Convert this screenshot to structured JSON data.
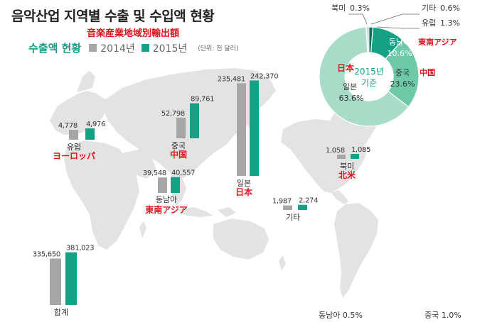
{
  "title": "음악산업 지역별 수출 및 수입액 현황",
  "subtitle_jp": "音楽産業地域別輸出額",
  "legend": {
    "title": "수출액 현황",
    "items": [
      {
        "label": "2014년",
        "color": "#a6a6a6"
      },
      {
        "label": "2015년",
        "color": "#16a085"
      }
    ],
    "unit": "(단위: 천 달러)"
  },
  "bottom_notes": {
    "southeast_asia": "동남아 0.5%",
    "china": "중국 1.0%"
  },
  "chart_data": [
    {
      "type": "bar",
      "series": [
        {
          "name": "2014년"
        },
        {
          "name": "2015년"
        }
      ],
      "regions": [
        {
          "key": "europe",
          "label": "유럽",
          "label_jp": "ヨーロッパ",
          "values": [
            4778,
            4976
          ],
          "value_labels": [
            "4,778",
            "4,976"
          ]
        },
        {
          "key": "china",
          "label": "중국",
          "label_jp": "中国",
          "values": [
            52798,
            89761
          ],
          "value_labels": [
            "52,798",
            "89,761"
          ]
        },
        {
          "key": "southeast_asia",
          "label": "동남아",
          "label_jp": "東南アジア",
          "values": [
            39548,
            40557
          ],
          "value_labels": [
            "39,548",
            "40,557"
          ]
        },
        {
          "key": "japan",
          "label": "일본",
          "label_jp": "日本",
          "values": [
            235481,
            242370
          ],
          "value_labels": [
            "235,481",
            "242,370"
          ]
        },
        {
          "key": "others",
          "label": "기타",
          "label_jp": "",
          "values": [
            1987,
            2274
          ],
          "value_labels": [
            "1,987",
            "2,274"
          ]
        },
        {
          "key": "north_america",
          "label": "북미",
          "label_jp": "北米",
          "values": [
            1058,
            1085
          ],
          "value_labels": [
            "1,058",
            "1,085"
          ]
        },
        {
          "key": "total",
          "label": "합계",
          "label_jp": "",
          "values": [
            335650,
            381023
          ],
          "value_labels": [
            "335,650",
            "381,023"
          ]
        }
      ]
    },
    {
      "type": "pie",
      "center_label": [
        "2015년",
        "기준"
      ],
      "slices": [
        {
          "label": "일본",
          "label_jp": "日本",
          "percent": 63.6,
          "percent_label": "63.6%",
          "color": "#a8dcc8"
        },
        {
          "label": "중국",
          "label_jp": "中国",
          "percent": 23.6,
          "percent_label": "23.6%",
          "color": "#6ec9a8"
        },
        {
          "label": "동남아",
          "label_jp": "東南アジア",
          "percent": 10.6,
          "percent_label": "10.6%",
          "color": "#16a085"
        },
        {
          "label": "유럽",
          "label_jp": "",
          "percent": 1.3,
          "percent_label": "1.3%",
          "color": "#0e6b57"
        },
        {
          "label": "기타",
          "label_jp": "",
          "percent": 0.6,
          "percent_label": "0.6%",
          "color": "#888888"
        },
        {
          "label": "북미",
          "label_jp": "",
          "percent": 0.3,
          "percent_label": "0.3%",
          "color": "#555555"
        }
      ]
    }
  ]
}
